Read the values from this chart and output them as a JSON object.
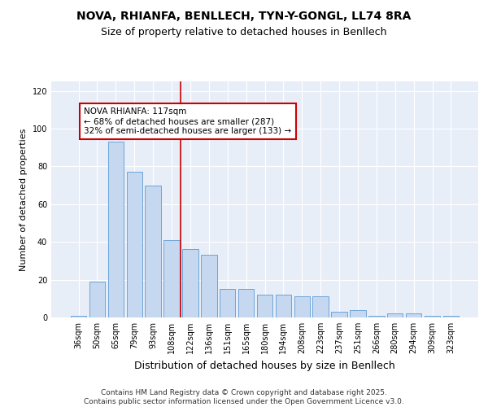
{
  "title1": "NOVA, RHIANFA, BENLLECH, TYN-Y-GONGL, LL74 8RA",
  "title2": "Size of property relative to detached houses in Benllech",
  "xlabel": "Distribution of detached houses by size in Benllech",
  "ylabel": "Number of detached properties",
  "categories": [
    "36sqm",
    "50sqm",
    "65sqm",
    "79sqm",
    "93sqm",
    "108sqm",
    "122sqm",
    "136sqm",
    "151sqm",
    "165sqm",
    "180sqm",
    "194sqm",
    "208sqm",
    "223sqm",
    "237sqm",
    "251sqm",
    "266sqm",
    "280sqm",
    "294sqm",
    "309sqm",
    "323sqm"
  ],
  "values": [
    1,
    19,
    93,
    77,
    70,
    41,
    36,
    33,
    15,
    15,
    12,
    12,
    11,
    11,
    3,
    4,
    1,
    2,
    2,
    1,
    1
  ],
  "bar_color": "#c5d8f0",
  "bar_edge_color": "#5b9bd5",
  "vline_x_idx": 5.5,
  "vline_color": "#cc0000",
  "annotation_text": "NOVA RHIANFA: 117sqm\n← 68% of detached houses are smaller (287)\n32% of semi-detached houses are larger (133) →",
  "annotation_box_color": "#ffffff",
  "annotation_box_edge": "#cc0000",
  "ylim": [
    0,
    125
  ],
  "yticks": [
    0,
    20,
    40,
    60,
    80,
    100,
    120
  ],
  "background_color": "#e8eef8",
  "footer": "Contains HM Land Registry data © Crown copyright and database right 2025.\nContains public sector information licensed under the Open Government Licence v3.0.",
  "title_fontsize": 10,
  "subtitle_fontsize": 9,
  "xlabel_fontsize": 9,
  "ylabel_fontsize": 8,
  "tick_fontsize": 7,
  "footer_fontsize": 6.5,
  "annotation_fontsize": 7.5
}
